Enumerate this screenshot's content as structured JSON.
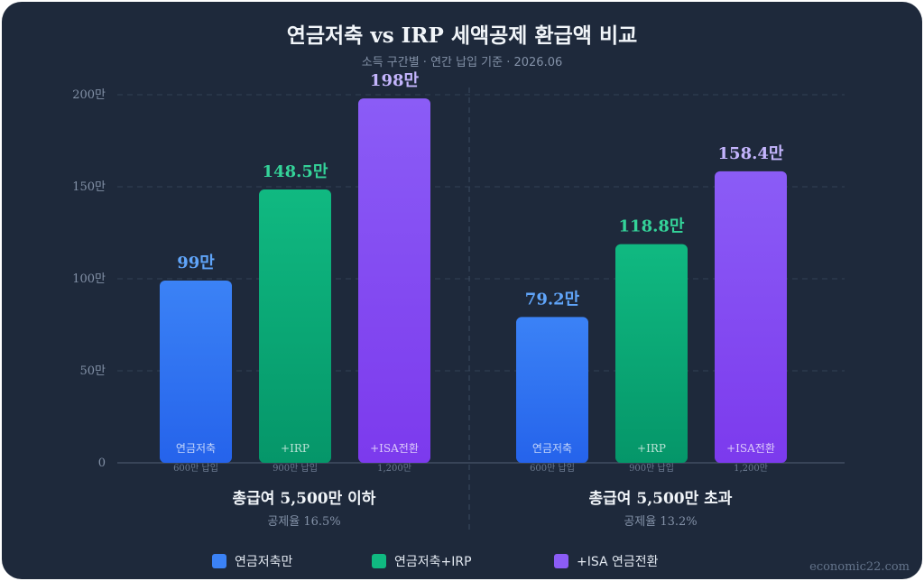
{
  "page": {
    "title": "연금저축 vs IRP 세액공제 환급액 비교",
    "subtitle": "소득 구간별 · 연간 납입 기준 · 2026.06",
    "watermark": "economic22.com"
  },
  "colors": {
    "savings": "#3b82f6",
    "irp": "#10b981",
    "isa": "#8b5cf6",
    "savings_label": "#60a5fa",
    "irp_label": "#34d399",
    "isa_label": "#c4b5fd"
  },
  "chart_data": {
    "type": "bar",
    "title": "연금저축 vs IRP 세액공제 환급액 비교",
    "subtitle": "소득 구간별 · 연간 납입 기준 · 2026.06",
    "ylim": [
      0,
      200
    ],
    "yticks": [
      "0",
      "50만",
      "100만",
      "150만",
      "200만"
    ],
    "ytick_values": [
      0,
      50,
      100,
      150,
      200
    ],
    "grid": true,
    "legend_position": "bottom",
    "series": [
      {
        "name": "연금저축만",
        "key": "savings"
      },
      {
        "name": "연금저축+IRP",
        "key": "irp"
      },
      {
        "name": "+ISA 연금전환",
        "key": "isa"
      }
    ],
    "groups": [
      {
        "label": "총급여 5,500만 이하",
        "sublabel": "공제율 16.5%",
        "bars": [
          {
            "key": "savings",
            "value": 99,
            "value_label": "99만",
            "name": "연금저축",
            "note": "600만 납입"
          },
          {
            "key": "irp",
            "value": 148.5,
            "value_label": "148.5만",
            "name": "+IRP",
            "note": "900만 납입"
          },
          {
            "key": "isa",
            "value": 198,
            "value_label": "198만",
            "name": "+ISA전환",
            "note": "1,200만"
          }
        ]
      },
      {
        "label": "총급여 5,500만 초과",
        "sublabel": "공제율 13.2%",
        "bars": [
          {
            "key": "savings",
            "value": 79.2,
            "value_label": "79.2만",
            "name": "연금저축",
            "note": "600만 납입"
          },
          {
            "key": "irp",
            "value": 118.8,
            "value_label": "118.8만",
            "name": "+IRP",
            "note": "900만 납입"
          },
          {
            "key": "isa",
            "value": 158.4,
            "value_label": "158.4만",
            "name": "+ISA전환",
            "note": "1,200만"
          }
        ]
      }
    ]
  }
}
